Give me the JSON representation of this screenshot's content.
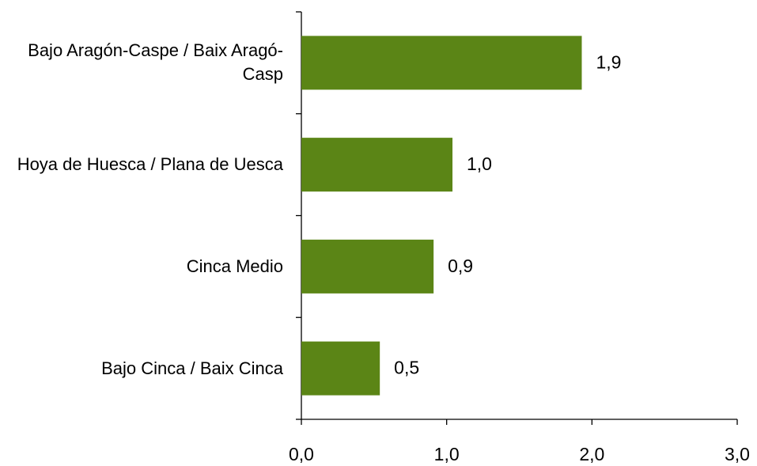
{
  "chart_data": {
    "type": "bar",
    "orientation": "horizontal",
    "categories": [
      "Bajo Aragón-Caspe / Baix Aragó-Casp",
      "Hoya de Huesca / Plana de Uesca",
      "Cinca Medio",
      "Bajo Cinca / Baix Cinca"
    ],
    "values": [
      1.93,
      1.04,
      0.91,
      0.54
    ],
    "value_labels": [
      "1,9",
      "1,0",
      "0,9",
      "0,5"
    ],
    "color": "#5b8516",
    "xlim": [
      0,
      3
    ],
    "xticks": [
      {
        "value": 0,
        "label": "0,0"
      },
      {
        "value": 1,
        "label": "1,0"
      },
      {
        "value": 2,
        "label": "2,0"
      },
      {
        "value": 3,
        "label": "3,0"
      }
    ]
  }
}
